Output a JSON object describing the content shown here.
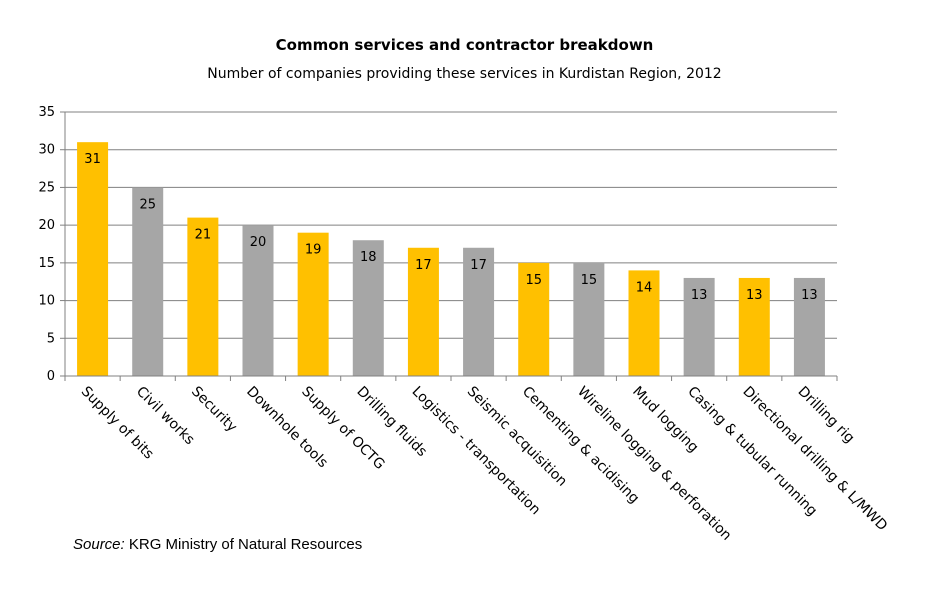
{
  "chart_data": {
    "type": "bar",
    "title": "Common services and contractor breakdown",
    "subtitle": "Number of companies providing these services in Kurdistan Region, 2012",
    "categories": [
      "Supply of bits",
      "Civil works",
      "Security",
      "Downhole tools",
      "Supply of OCTG",
      "Drilling fluids",
      "Logistics - transportation",
      "Seismic acquisition",
      "Cementing & acidising",
      "Wireline logging & perforation",
      "Mud logging",
      "Casing & tubular running",
      "Directional drilling & L/MWD",
      "Drilling rig"
    ],
    "values": [
      31,
      25,
      21,
      20,
      19,
      18,
      17,
      17,
      15,
      15,
      14,
      13,
      13,
      13
    ],
    "bar_colors": [
      "#FFC000",
      "#A6A6A6",
      "#FFC000",
      "#A6A6A6",
      "#FFC000",
      "#A6A6A6",
      "#FFC000",
      "#A6A6A6",
      "#FFC000",
      "#A6A6A6",
      "#FFC000",
      "#A6A6A6",
      "#FFC000",
      "#A6A6A6"
    ],
    "ylim": [
      0,
      35
    ],
    "yticks": [
      0,
      5,
      10,
      15,
      20,
      25,
      30,
      35
    ],
    "grid": true,
    "data_labels": true
  },
  "source": {
    "label": "Source:",
    "text": " KRG Ministry of Natural Resources"
  },
  "colors": {
    "gridline": "#808080",
    "axis": "#808080"
  }
}
